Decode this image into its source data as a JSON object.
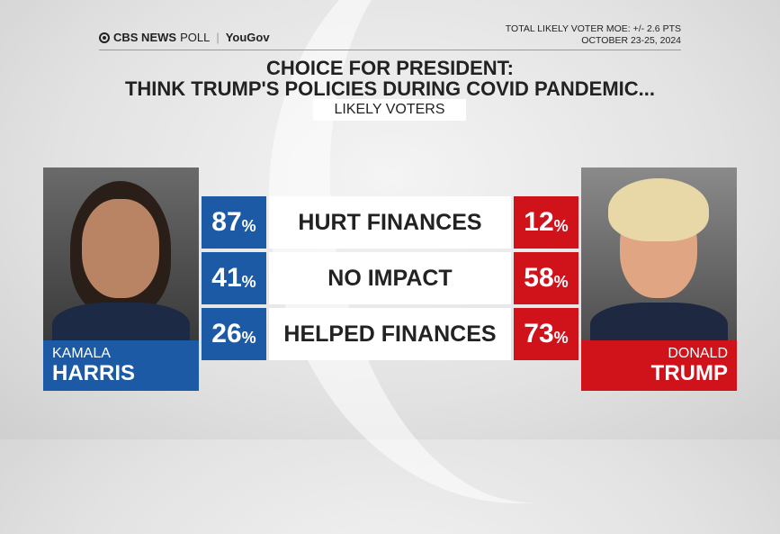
{
  "header": {
    "logo_cbs": "CBS NEWS",
    "logo_poll": "POLL",
    "logo_partner": "YouGov",
    "moe": "TOTAL LIKELY VOTER MOE: +/- 2.6 PTS",
    "dates": "OCTOBER 23-25, 2024"
  },
  "title_line1": "CHOICE FOR PRESIDENT:",
  "title_line2": "THINK TRUMP'S POLICIES DURING COVID PANDEMIC...",
  "subtitle": "LIKELY VOTERS",
  "colors": {
    "harris": "#1c5aa5",
    "trump": "#d0121b"
  },
  "candidates": {
    "harris": {
      "first": "KAMALA",
      "last": "HARRIS"
    },
    "trump": {
      "first": "DONALD",
      "last": "TRUMP"
    }
  },
  "chart_data": {
    "type": "table",
    "title": "CHOICE FOR PRESIDENT: THINK TRUMP'S POLICIES DURING COVID PANDEMIC...",
    "categories": [
      "HURT FINANCES",
      "NO IMPACT",
      "HELPED FINANCES"
    ],
    "series": [
      {
        "name": "KAMALA HARRIS",
        "values": [
          87,
          41,
          26
        ]
      },
      {
        "name": "DONALD TRUMP",
        "values": [
          12,
          58,
          73
        ]
      }
    ],
    "unit": "%"
  }
}
